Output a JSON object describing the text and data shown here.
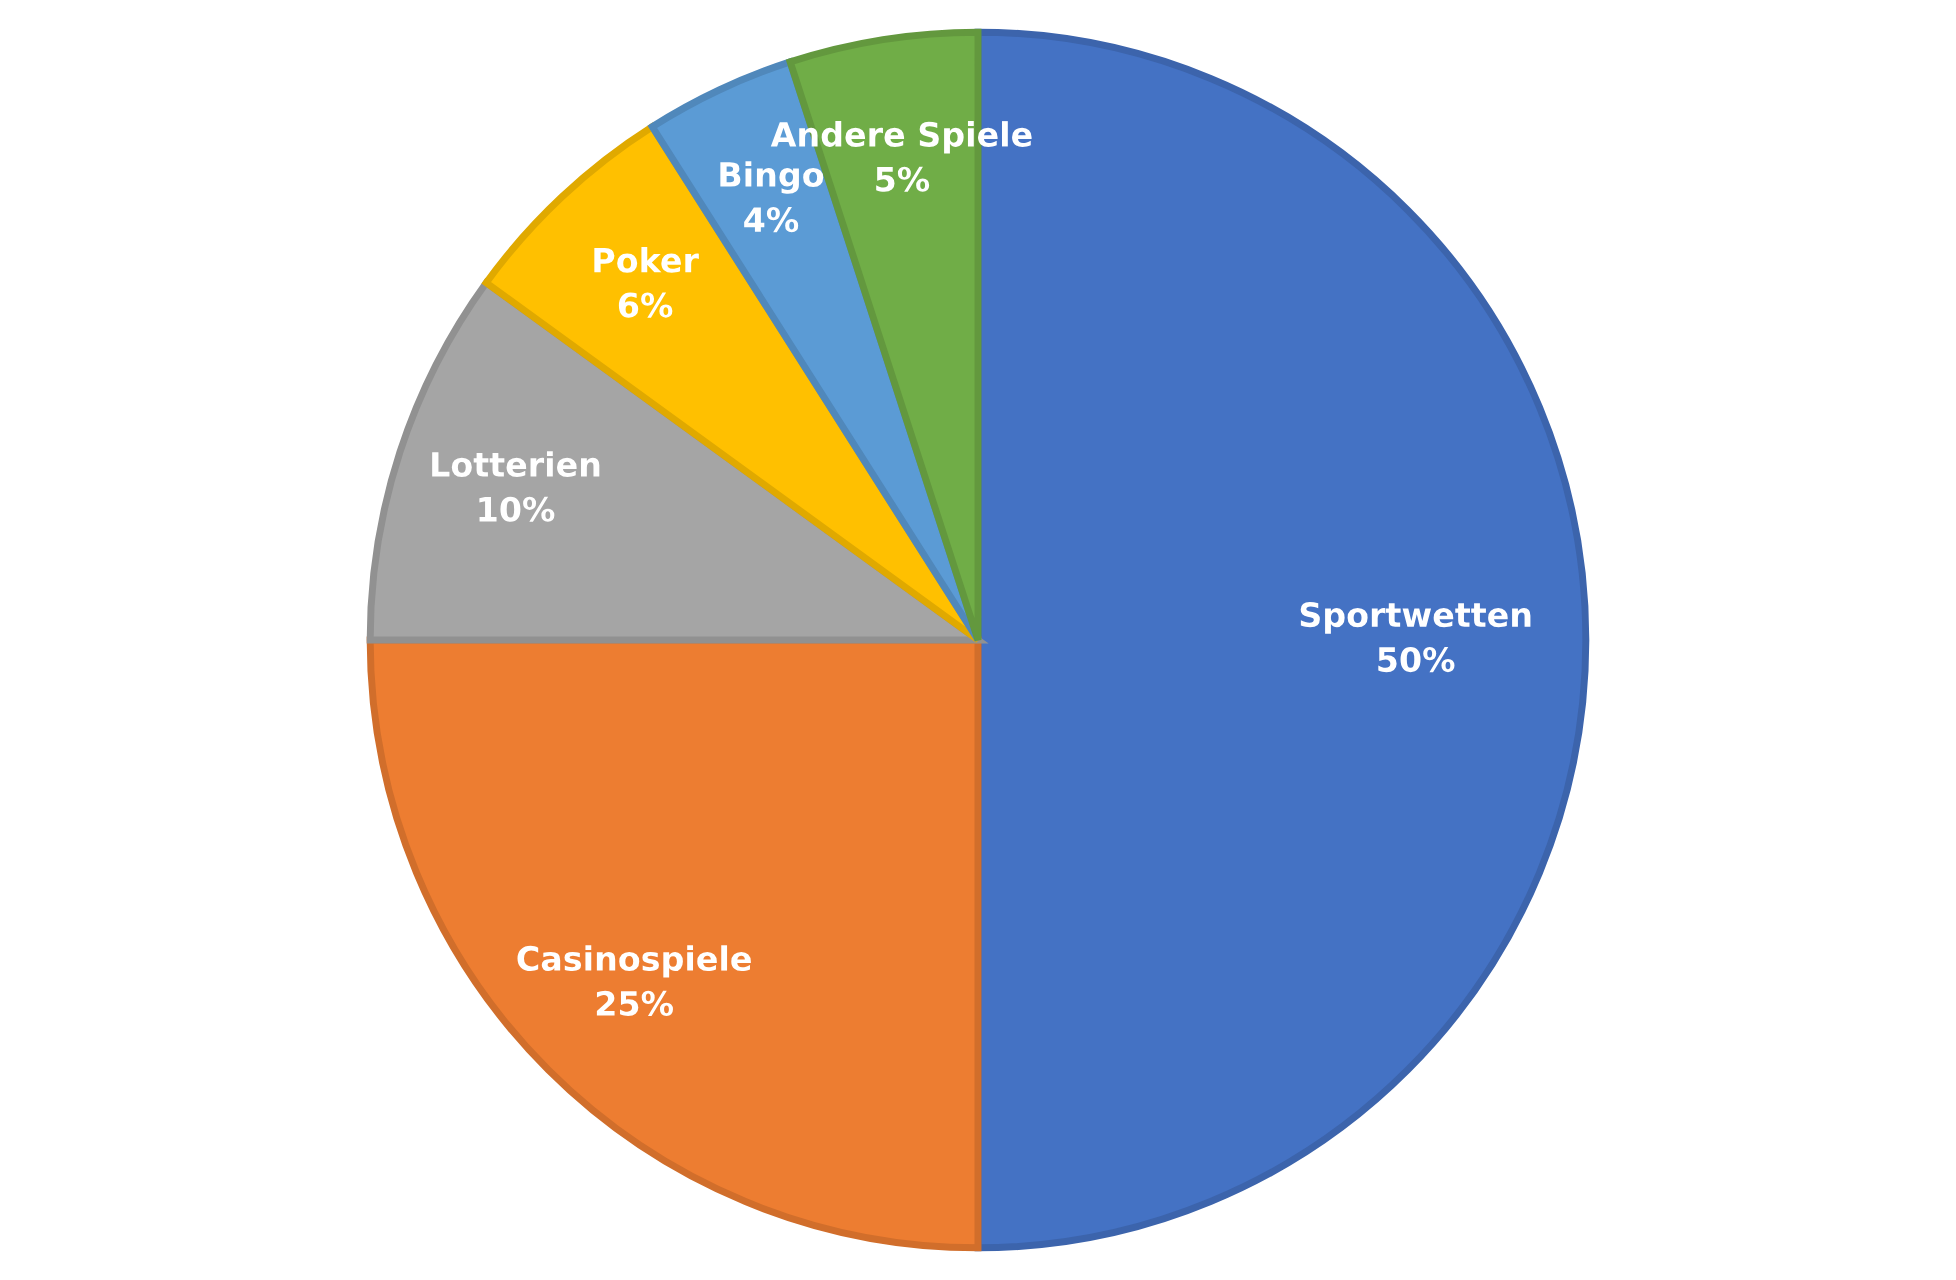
{
  "chart_data": {
    "type": "pie",
    "categories": [
      "Sportwetten",
      "Casinospiele",
      "Lotterien",
      "Poker",
      "Bingo",
      "Andere Spiele"
    ],
    "values": [
      50,
      25,
      10,
      6,
      4,
      5
    ],
    "value_labels": [
      "50%",
      "25%",
      "10%",
      "6%",
      "4%",
      "5%"
    ],
    "colors": [
      "#4472c4",
      "#ed7d31",
      "#a5a5a5",
      "#ffc000",
      "#5b9bd5",
      "#70ad47"
    ],
    "legend": false
  }
}
